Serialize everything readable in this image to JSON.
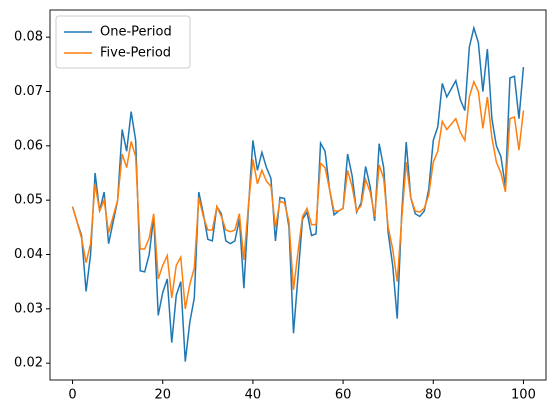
{
  "chart_data": {
    "type": "line",
    "legend": "upper left",
    "grid": false,
    "x": [
      0,
      1,
      2,
      3,
      4,
      5,
      6,
      7,
      8,
      9,
      10,
      11,
      12,
      13,
      14,
      15,
      16,
      17,
      18,
      19,
      20,
      21,
      22,
      23,
      24,
      25,
      26,
      27,
      28,
      29,
      30,
      31,
      32,
      33,
      34,
      35,
      36,
      37,
      38,
      39,
      40,
      41,
      42,
      43,
      44,
      45,
      46,
      47,
      48,
      49,
      50,
      51,
      52,
      53,
      54,
      55,
      56,
      57,
      58,
      59,
      60,
      61,
      62,
      63,
      64,
      65,
      66,
      67,
      68,
      69,
      70,
      71,
      72,
      73,
      74,
      75,
      76,
      77,
      78,
      79,
      80,
      81,
      82,
      83,
      84,
      85,
      86,
      87,
      88,
      89,
      90,
      91,
      92,
      93,
      94,
      95,
      96,
      97,
      98,
      99,
      100
    ],
    "series": [
      {
        "name": "One-Period",
        "color": "#1f77b4",
        "values": [
          0.0488,
          0.046,
          0.0435,
          0.0332,
          0.04,
          0.055,
          0.048,
          0.0515,
          0.042,
          0.046,
          0.05,
          0.063,
          0.059,
          0.0663,
          0.061,
          0.037,
          0.0368,
          0.04,
          0.047,
          0.0288,
          0.033,
          0.0355,
          0.0238,
          0.0325,
          0.035,
          0.0203,
          0.0275,
          0.032,
          0.0515,
          0.0475,
          0.0428,
          0.0425,
          0.0488,
          0.0475,
          0.0425,
          0.042,
          0.0425,
          0.0465,
          0.0338,
          0.0485,
          0.061,
          0.0555,
          0.0588,
          0.056,
          0.054,
          0.0425,
          0.0505,
          0.0503,
          0.045,
          0.0255,
          0.036,
          0.0465,
          0.0478,
          0.0435,
          0.0438,
          0.0605,
          0.059,
          0.052,
          0.0473,
          0.048,
          0.0485,
          0.0585,
          0.0545,
          0.0478,
          0.0495,
          0.0562,
          0.0525,
          0.0462,
          0.0604,
          0.056,
          0.044,
          0.038,
          0.0282,
          0.0475,
          0.0607,
          0.0505,
          0.0475,
          0.047,
          0.048,
          0.052,
          0.061,
          0.0635,
          0.0715,
          0.069,
          0.0705,
          0.072,
          0.0685,
          0.0665,
          0.0782,
          0.0817,
          0.079,
          0.07,
          0.0778,
          0.065,
          0.06,
          0.058,
          0.0525,
          0.0725,
          0.0728,
          0.065,
          0.0745
        ]
      },
      {
        "name": "Five-Period",
        "color": "#ff7f0e",
        "values": [
          0.0488,
          0.046,
          0.043,
          0.0385,
          0.042,
          0.053,
          0.048,
          0.05,
          0.044,
          0.047,
          0.05,
          0.0585,
          0.056,
          0.0608,
          0.058,
          0.041,
          0.041,
          0.043,
          0.0475,
          0.0355,
          0.038,
          0.0398,
          0.032,
          0.038,
          0.0395,
          0.03,
          0.0345,
          0.0375,
          0.0505,
          0.047,
          0.0445,
          0.0445,
          0.0488,
          0.047,
          0.0445,
          0.0442,
          0.0445,
          0.0475,
          0.039,
          0.049,
          0.0575,
          0.053,
          0.0555,
          0.0535,
          0.0525,
          0.045,
          0.0498,
          0.0495,
          0.046,
          0.0335,
          0.0405,
          0.047,
          0.0485,
          0.0455,
          0.0455,
          0.0568,
          0.056,
          0.052,
          0.048,
          0.048,
          0.0485,
          0.0555,
          0.0525,
          0.048,
          0.049,
          0.0538,
          0.0515,
          0.047,
          0.0565,
          0.054,
          0.045,
          0.041,
          0.035,
          0.0465,
          0.057,
          0.0505,
          0.048,
          0.0478,
          0.0485,
          0.051,
          0.057,
          0.059,
          0.0645,
          0.063,
          0.064,
          0.065,
          0.0625,
          0.061,
          0.069,
          0.0718,
          0.07,
          0.0632,
          0.069,
          0.0615,
          0.057,
          0.055,
          0.0515,
          0.065,
          0.0653,
          0.0592,
          0.0665
        ]
      }
    ],
    "xlim": [
      -5,
      105
    ],
    "xticks": [
      0,
      20,
      40,
      60,
      80,
      100
    ],
    "ylim": [
      0.0169,
      0.085
    ],
    "yticks": [
      0.02,
      0.03,
      0.04,
      0.05,
      0.06,
      0.07,
      0.08
    ]
  }
}
